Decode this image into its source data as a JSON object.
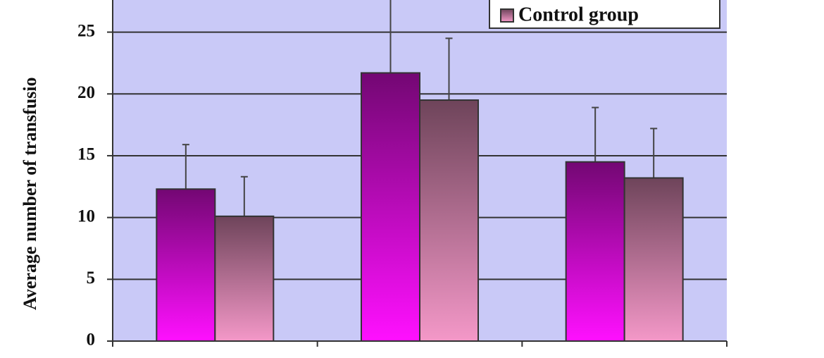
{
  "chart_data": {
    "type": "bar",
    "y_label": "Average number of transfusio",
    "categories": [
      null,
      null,
      null
    ],
    "series": [
      {
        "color": "#ff10ff",
        "values": [
          12.3,
          21.7,
          14.5
        ],
        "errors": [
          3.6,
          6.3,
          4.4
        ]
      },
      {
        "name": "Control group",
        "color": "#f498c8",
        "values": [
          10.1,
          19.5,
          13.2
        ],
        "errors": [
          3.2,
          5.0,
          4.0
        ]
      }
    ],
    "ylim": [
      0,
      27.6
    ],
    "yticks": [
      0,
      5,
      10,
      15,
      20,
      25
    ],
    "grid": true
  }
}
